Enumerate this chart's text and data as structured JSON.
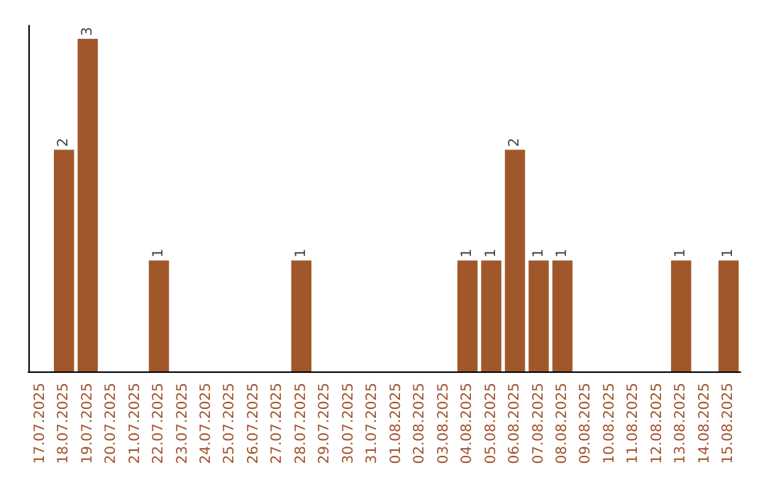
{
  "chart_data": {
    "type": "bar",
    "categories": [
      "17.07.2025",
      "18.07.2025",
      "19.07.2025",
      "20.07.2025",
      "21.07.2025",
      "22.07.2025",
      "23.07.2025",
      "24.07.2025",
      "25.07.2025",
      "26.07.2025",
      "27.07.2025",
      "28.07.2025",
      "29.07.2025",
      "30.07.2025",
      "31.07.2025",
      "01.08.2025",
      "02.08.2025",
      "03.08.2025",
      "04.08.2025",
      "05.08.2025",
      "06.08.2025",
      "07.08.2025",
      "08.08.2025",
      "09.08.2025",
      "10.08.2025",
      "11.08.2025",
      "12.08.2025",
      "13.08.2025",
      "14.08.2025",
      "15.08.2025"
    ],
    "values": [
      null,
      2,
      3,
      null,
      null,
      1,
      null,
      null,
      null,
      null,
      null,
      1,
      null,
      null,
      null,
      null,
      null,
      null,
      1,
      1,
      2,
      1,
      1,
      null,
      null,
      null,
      null,
      1,
      null,
      1
    ],
    "color": "#a0582a",
    "ylim": [
      0,
      3.12
    ],
    "tick_labels": "x",
    "data_labels": true
  }
}
